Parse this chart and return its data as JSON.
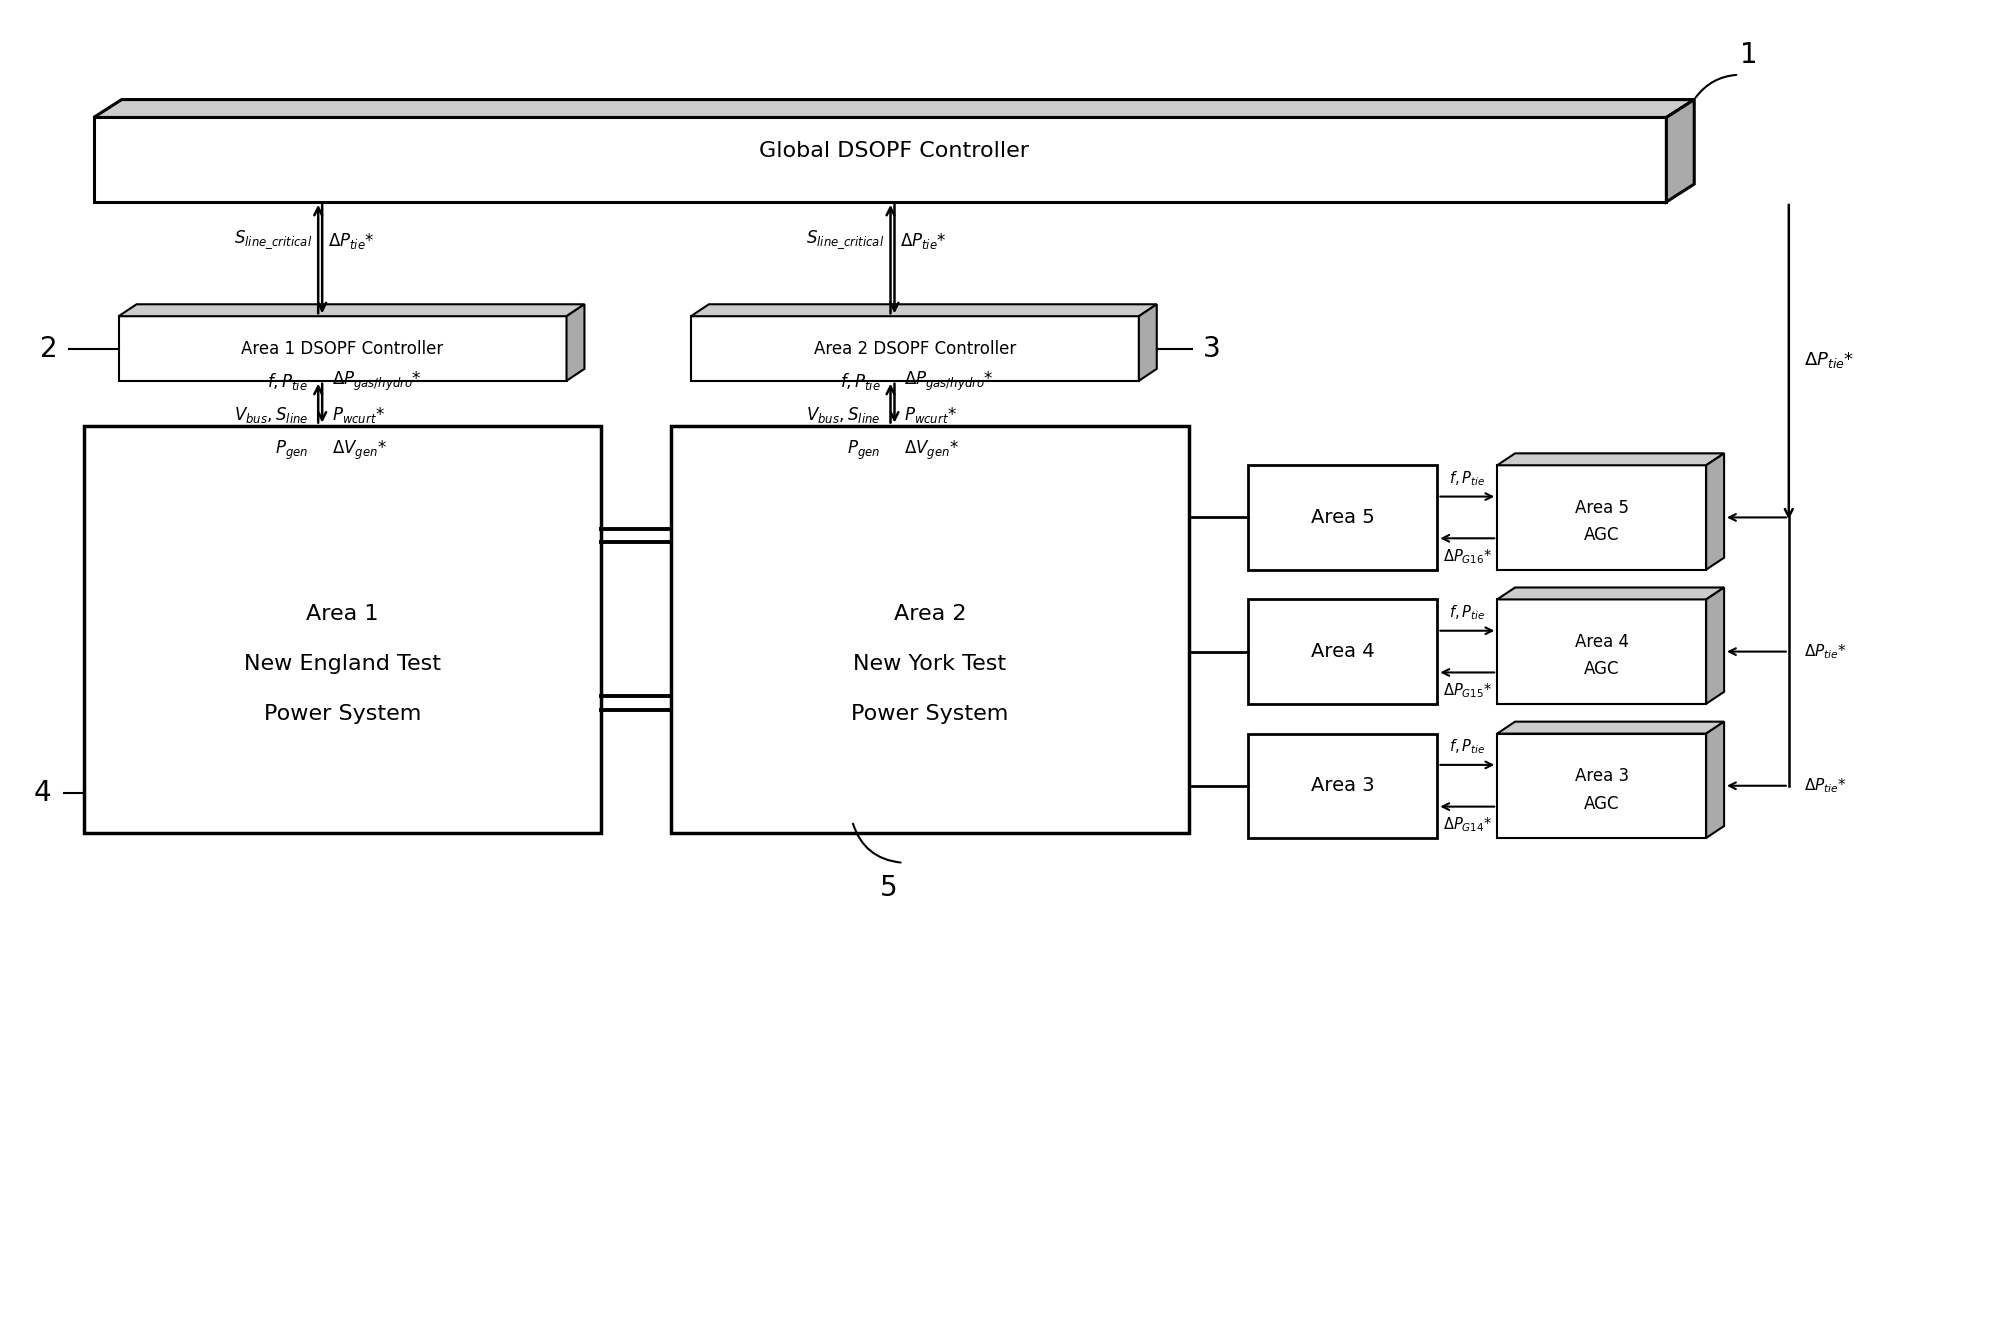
{
  "bg_color": "#ffffff",
  "global_controller_label": "Global DSOPF Controller",
  "label_1": "1",
  "label_2": "2",
  "label_3": "3",
  "label_4": "4",
  "label_5": "5",
  "area1_ctrl_label": "Area 1 DSOPF Controller",
  "area2_ctrl_label": "Area 2 DSOPF Controller",
  "area1_power_line1": "Area 1",
  "area1_power_line2": "New England Test",
  "area1_power_line3": "Power System",
  "area2_power_line1": "Area 2",
  "area2_power_line2": "New York Test",
  "area2_power_line3": "Power System",
  "area3_label": "Area 3",
  "area4_label": "Area 4",
  "area5_label": "Area 5",
  "area3_agc_line1": "Area 3",
  "area3_agc_line2": "AGC",
  "area4_agc_line1": "Area 4",
  "area4_agc_line2": "AGC",
  "area5_agc_line1": "Area 5",
  "area5_agc_line2": "AGC"
}
